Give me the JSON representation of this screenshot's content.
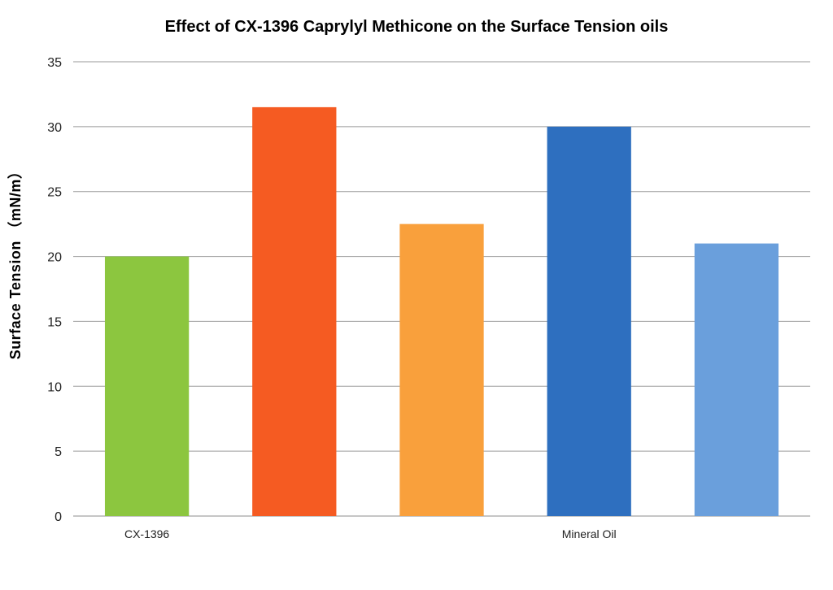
{
  "chart_data": {
    "type": "bar",
    "title": "Effect of CX-1396 Caprylyl Methicone on the Surface Tension oils",
    "ylabel": "Surface Tension （mN/m）",
    "xlabel": "",
    "ylim": [
      0,
      35
    ],
    "yticks": [
      0,
      5,
      10,
      15,
      20,
      25,
      30,
      35
    ],
    "grid": true,
    "legend": "none",
    "category_labels": [
      "CX-1396",
      "",
      "",
      "Mineral Oil",
      ""
    ],
    "values": [
      20,
      31.5,
      22.5,
      30,
      21
    ],
    "colors": [
      "#8cc63f",
      "#f55b22",
      "#f9a03c",
      "#2e6fbf",
      "#6a9fdc"
    ]
  }
}
